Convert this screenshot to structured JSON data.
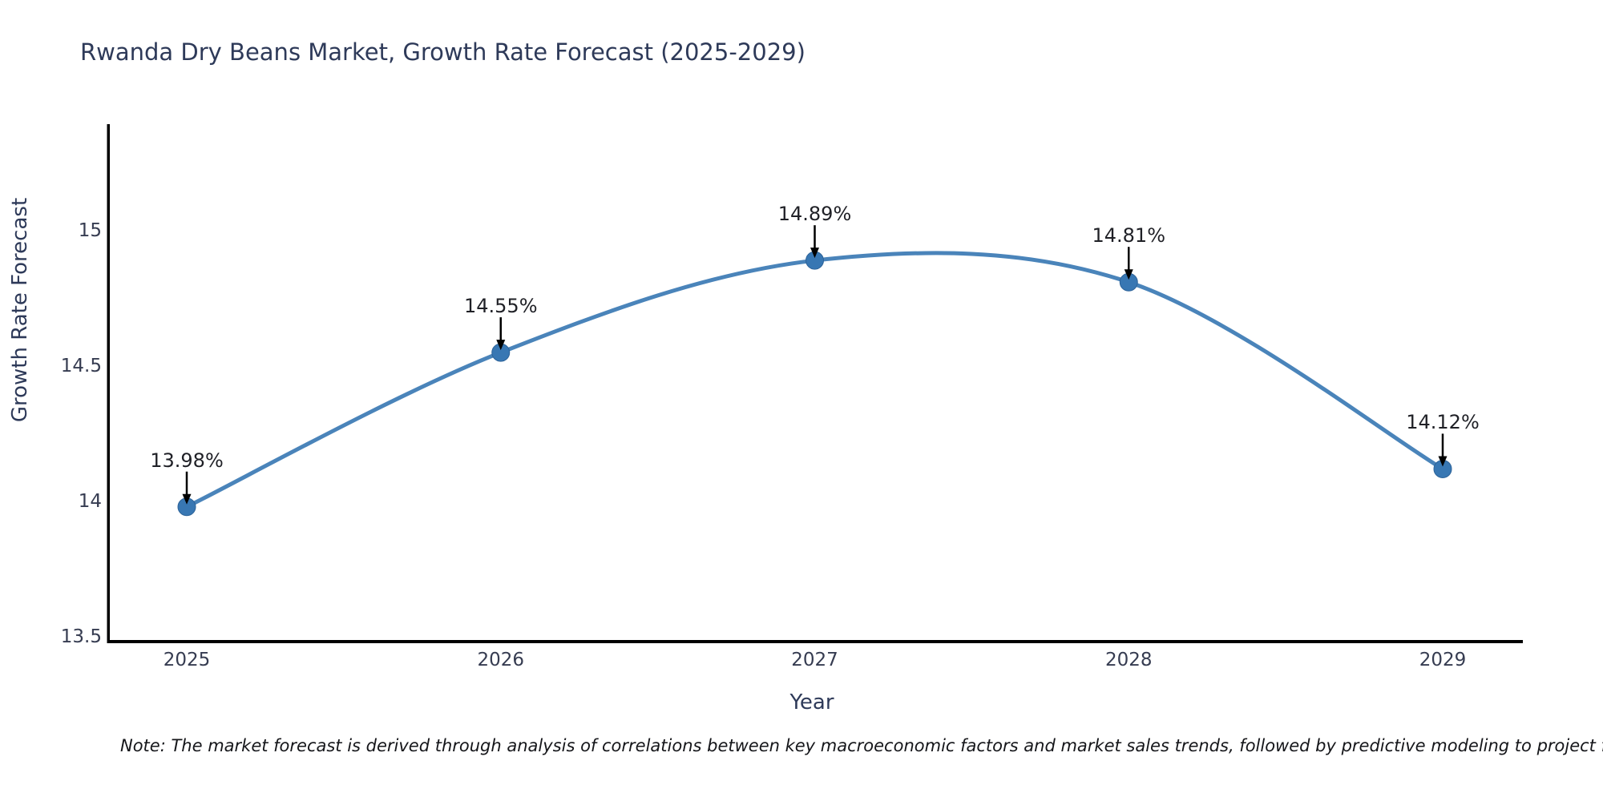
{
  "title": "Rwanda Dry Beans Market, Growth Rate Forecast (2025-2029)",
  "note": "Note: The market forecast is derived through analysis of correlations between key macroeconomic factors and market sales trends, followed by predictive modeling to project future sal",
  "chart_data": {
    "type": "line",
    "title": "Rwanda Dry Beans Market, Growth Rate Forecast (2025-2029)",
    "xlabel": "Year",
    "ylabel": "Growth Rate Forecast",
    "x": [
      2025,
      2026,
      2027,
      2028,
      2029
    ],
    "values": [
      13.98,
      14.55,
      14.89,
      14.81,
      14.12
    ],
    "point_labels": [
      "13.98%",
      "14.55%",
      "14.89%",
      "14.81%",
      "14.12%"
    ],
    "xtick_labels": [
      "2025",
      "2026",
      "2027",
      "2028",
      "2029"
    ],
    "ytick_values": [
      13.5,
      14,
      14.5,
      15
    ],
    "ytick_labels": [
      "13.5",
      "14",
      "14.5",
      "15"
    ],
    "ylim": [
      13.48,
      15.41
    ],
    "grid": false,
    "legend": "none",
    "line_color": "#4a84ba",
    "marker_color": "#3877b3",
    "marker_edge_color": "#2d6399",
    "annotation_arrow_color": "#000000",
    "spine_color": "#000000"
  }
}
